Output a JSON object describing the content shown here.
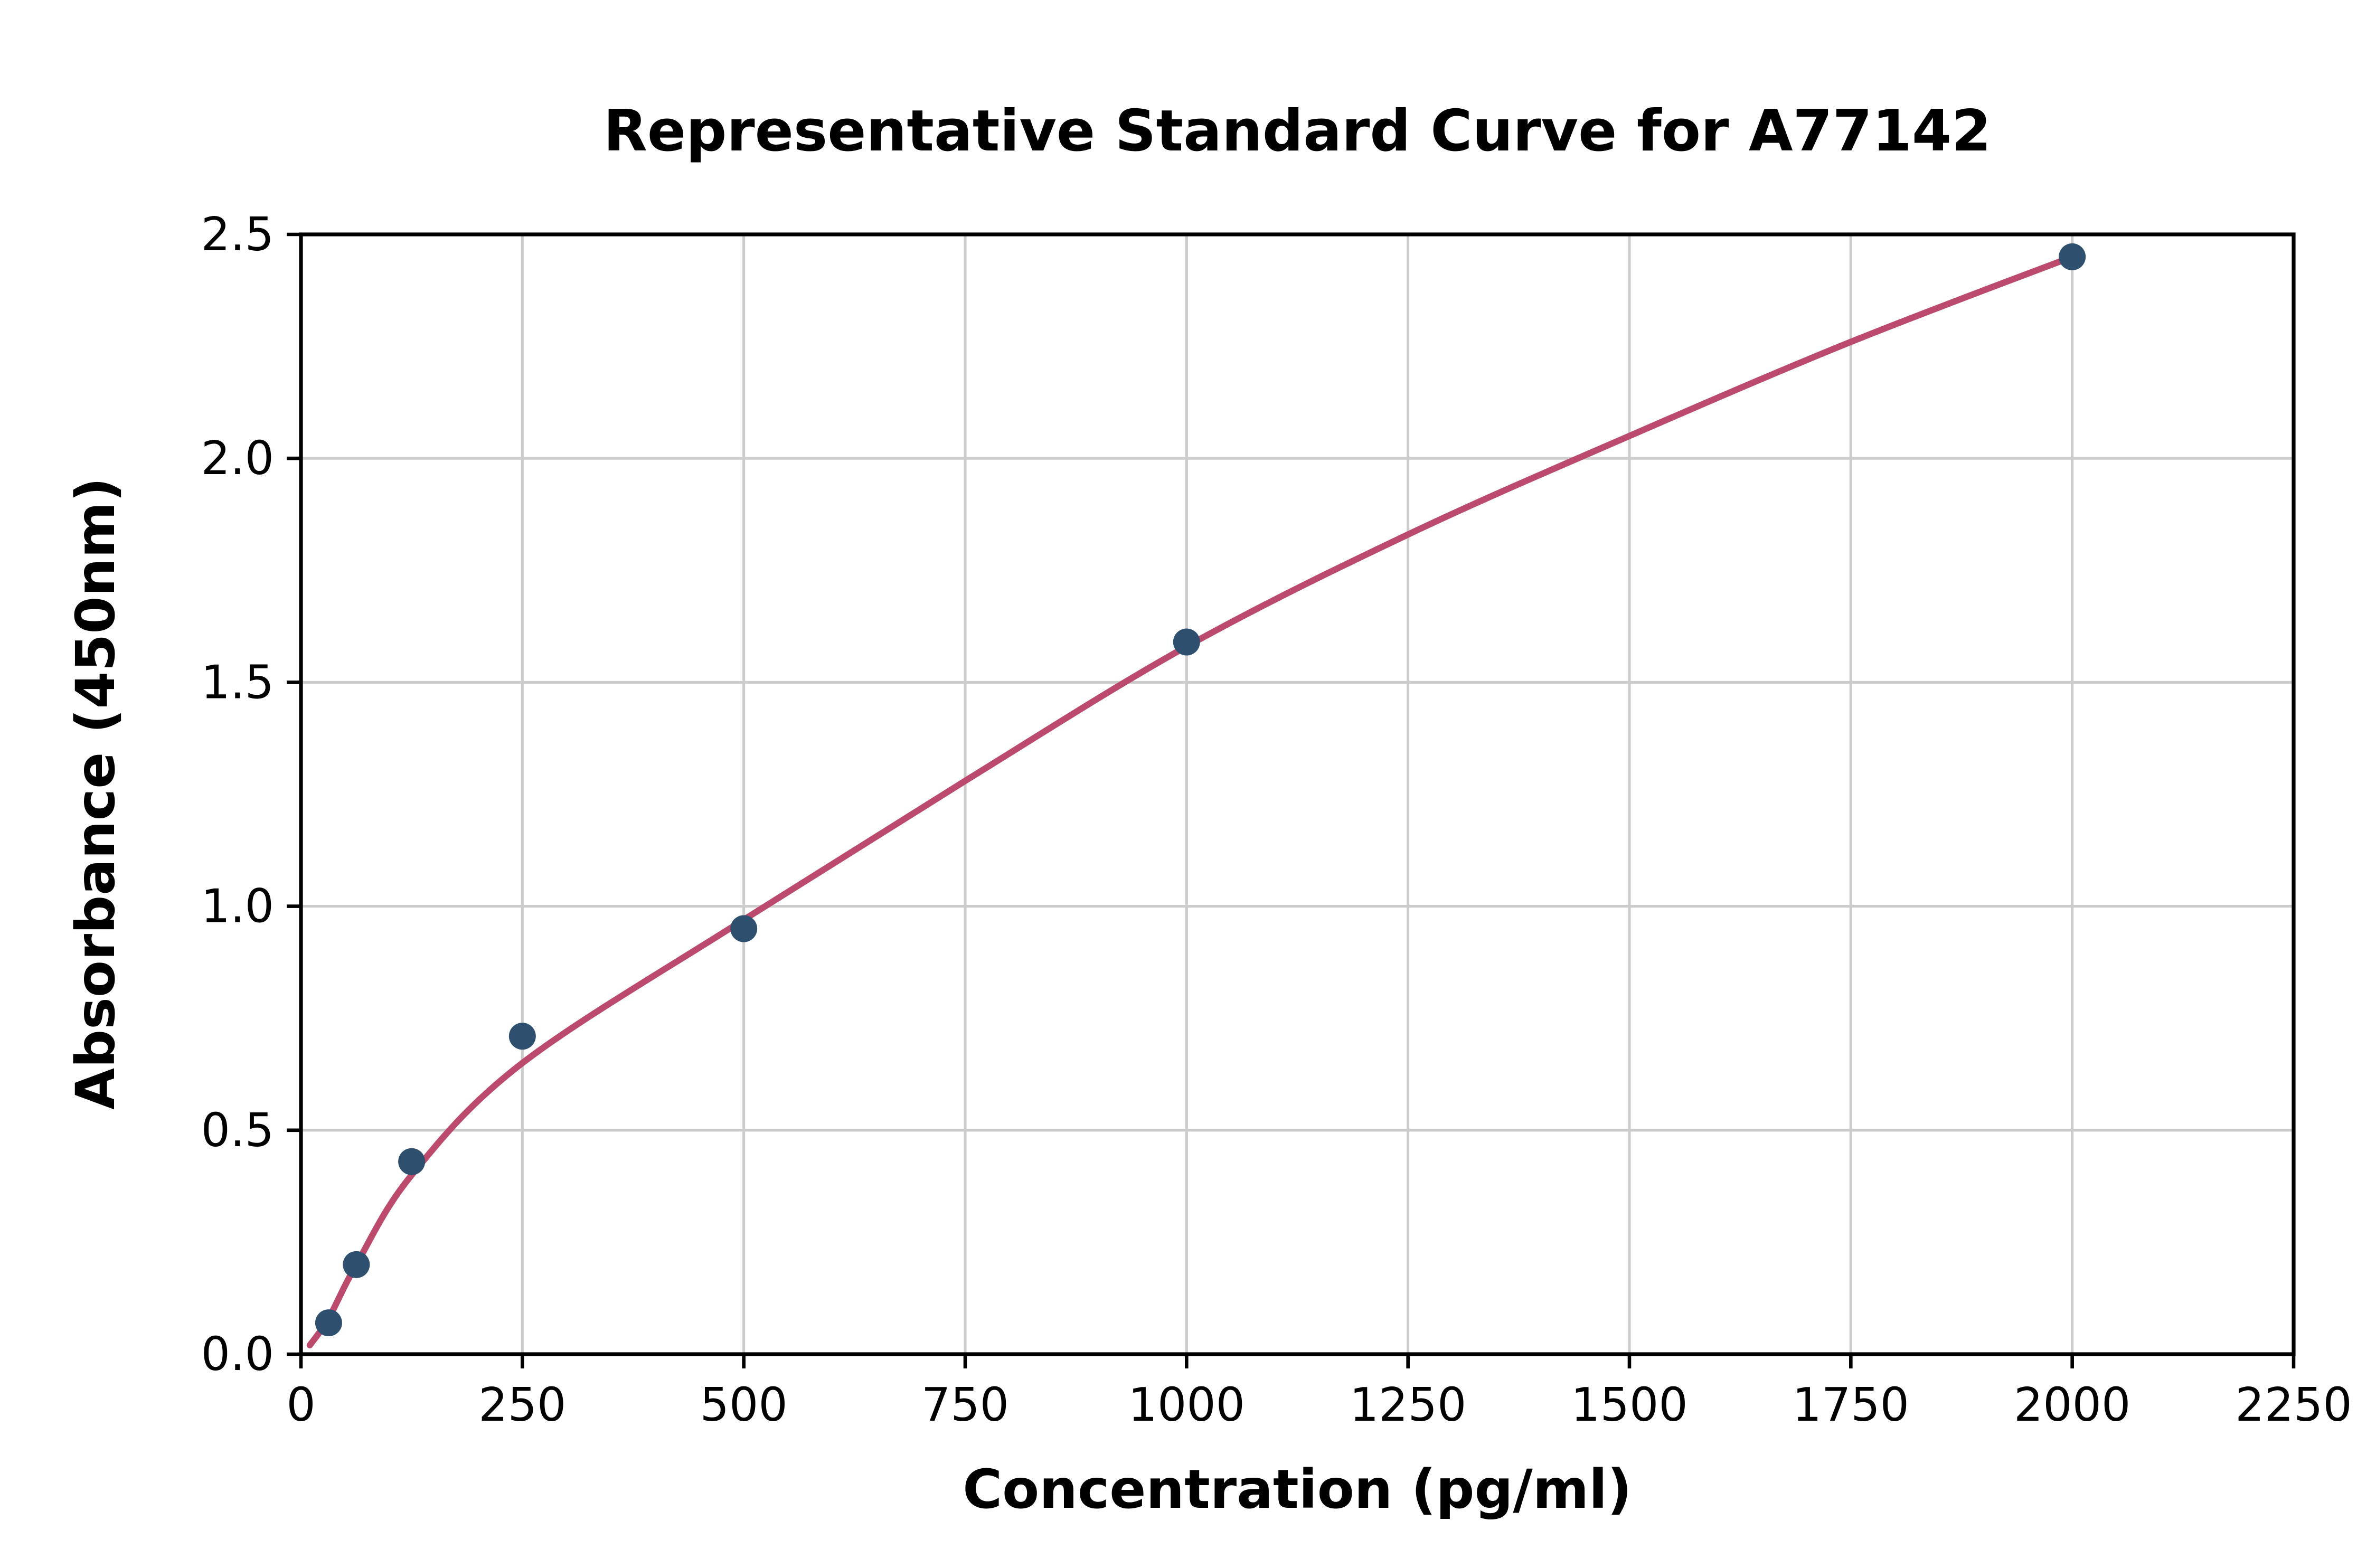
{
  "chart_data": {
    "type": "scatter",
    "title": "Representative Standard Curve for A77142",
    "xlabel": "Concentration (pg/ml)",
    "ylabel": "Absorbance (450nm)",
    "xlim": [
      0,
      2250
    ],
    "ylim": [
      0,
      2.5
    ],
    "x_ticks": [
      0,
      250,
      500,
      750,
      1000,
      1250,
      1500,
      1750,
      2000,
      2250
    ],
    "y_ticks": [
      0,
      0.5,
      1,
      1.5,
      2,
      2.5
    ],
    "grid": true,
    "legend": "none",
    "points": [
      {
        "x": 31.25,
        "y": 0.07
      },
      {
        "x": 62.5,
        "y": 0.2
      },
      {
        "x": 125,
        "y": 0.43
      },
      {
        "x": 250,
        "y": 0.71
      },
      {
        "x": 500,
        "y": 0.95
      },
      {
        "x": 1000,
        "y": 1.59
      },
      {
        "x": 2000,
        "y": 2.45
      }
    ],
    "fit_curve": {
      "points": [
        [
          10,
          0.02
        ],
        [
          31.25,
          0.08
        ],
        [
          62.5,
          0.2
        ],
        [
          125,
          0.4
        ],
        [
          250,
          0.65
        ],
        [
          500,
          0.97
        ],
        [
          750,
          1.28
        ],
        [
          1000,
          1.58
        ],
        [
          1250,
          1.83
        ],
        [
          1500,
          2.05
        ],
        [
          1750,
          2.26
        ],
        [
          2000,
          2.45
        ]
      ]
    },
    "colors": {
      "point": "#2e4f6e",
      "curve": "#bb4a6c",
      "grid": "#cccccc",
      "axis": "#000000",
      "background": "#ffffff"
    }
  }
}
